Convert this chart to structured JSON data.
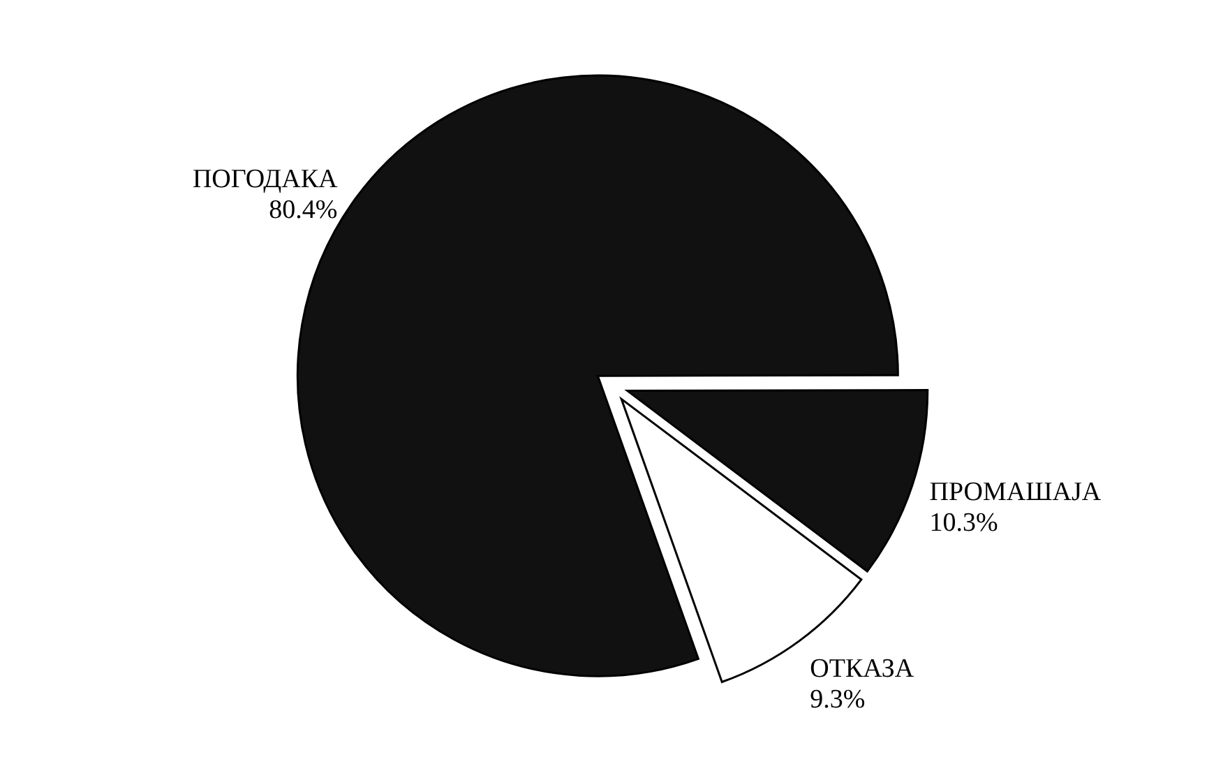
{
  "chart_data": {
    "type": "pie",
    "categories": [
      "ПОГОДАКА",
      "ПРОМАШАЈА",
      "ОТКАЗА"
    ],
    "values": [
      80.4,
      10.3,
      9.3
    ],
    "value_labels": [
      "80.4%",
      "10.3%",
      "9.3%"
    ],
    "colors": [
      "#111111",
      "#111111",
      "#ffffff"
    ]
  }
}
